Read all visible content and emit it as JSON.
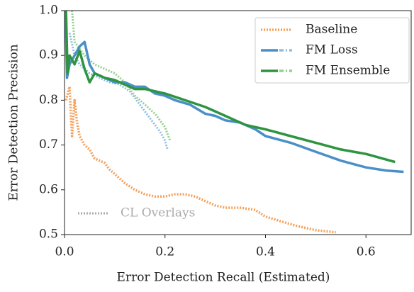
{
  "chart_data": {
    "type": "line",
    "xlabel": "Error Detection Recall (Estimated)",
    "ylabel": "Error Detection Precision",
    "xlim": [
      0,
      0.69
    ],
    "ylim": [
      0.5,
      1.0
    ],
    "xticks": [
      {
        "value": 0,
        "label": "0.0"
      },
      0.2,
      0.4,
      0.6
    ],
    "yticks": [
      0.5,
      0.6,
      0.7,
      0.8,
      0.9,
      {
        "value": 1.0,
        "label": "1.0"
      }
    ],
    "legend": "upper right",
    "series": [
      {
        "name": "Baseline",
        "color": "#f5a05a",
        "linestyle": "dotted",
        "x": [
          0.003,
          0.01,
          0.015,
          0.02,
          0.025,
          0.03,
          0.04,
          0.05,
          0.06,
          0.07,
          0.08,
          0.09,
          0.1,
          0.12,
          0.14,
          0.16,
          0.18,
          0.2,
          0.22,
          0.24,
          0.26,
          0.28,
          0.3,
          0.32,
          0.35,
          0.38,
          0.4,
          0.43,
          0.46,
          0.5,
          0.54
        ],
        "values": [
          0.8,
          0.83,
          0.72,
          0.8,
          0.75,
          0.72,
          0.7,
          0.69,
          0.67,
          0.665,
          0.66,
          0.645,
          0.635,
          0.615,
          0.6,
          0.59,
          0.585,
          0.585,
          0.59,
          0.59,
          0.585,
          0.575,
          0.565,
          0.56,
          0.56,
          0.555,
          0.54,
          0.53,
          0.52,
          0.51,
          0.505
        ]
      },
      {
        "name": "FM Loss",
        "color": "#4a8fc7",
        "linestyle": "solid",
        "x": [
          0.002,
          0.005,
          0.01,
          0.02,
          0.03,
          0.04,
          0.05,
          0.06,
          0.08,
          0.1,
          0.12,
          0.14,
          0.16,
          0.18,
          0.2,
          0.22,
          0.25,
          0.28,
          0.3,
          0.32,
          0.35,
          0.38,
          0.4,
          0.45,
          0.5,
          0.55,
          0.6,
          0.64,
          0.675
        ],
        "values": [
          1.0,
          0.85,
          0.88,
          0.9,
          0.92,
          0.93,
          0.88,
          0.86,
          0.85,
          0.84,
          0.84,
          0.83,
          0.83,
          0.815,
          0.81,
          0.8,
          0.79,
          0.77,
          0.765,
          0.755,
          0.75,
          0.735,
          0.72,
          0.705,
          0.685,
          0.665,
          0.65,
          0.643,
          0.64
        ]
      },
      {
        "name": "FM Ensemble",
        "color": "#2e9440",
        "linestyle": "solid",
        "x": [
          0.003,
          0.006,
          0.01,
          0.02,
          0.03,
          0.04,
          0.05,
          0.06,
          0.08,
          0.1,
          0.12,
          0.14,
          0.16,
          0.2,
          0.24,
          0.28,
          0.32,
          0.36,
          0.4,
          0.45,
          0.5,
          0.55,
          0.6,
          0.658
        ],
        "values": [
          1.0,
          0.86,
          0.9,
          0.88,
          0.91,
          0.87,
          0.84,
          0.86,
          0.85,
          0.845,
          0.835,
          0.825,
          0.825,
          0.815,
          0.8,
          0.785,
          0.765,
          0.745,
          0.735,
          0.72,
          0.705,
          0.69,
          0.68,
          0.662
        ]
      }
    ],
    "overlays": {
      "label": "CL Overlays",
      "color": "#aaaaaa",
      "curves": [
        {
          "color": "#8fbde0",
          "x": [
            0.01,
            0.02,
            0.03,
            0.04,
            0.05,
            0.07,
            0.09,
            0.11,
            0.13,
            0.15,
            0.17,
            0.19,
            0.2,
            0.205
          ],
          "values": [
            0.95,
            0.9,
            0.88,
            0.87,
            0.86,
            0.85,
            0.84,
            0.835,
            0.82,
            0.79,
            0.76,
            0.73,
            0.71,
            0.69
          ]
        },
        {
          "color": "#93d08c",
          "x": [
            0.015,
            0.02,
            0.04,
            0.06,
            0.08,
            0.1,
            0.12,
            0.14,
            0.16,
            0.18,
            0.2,
            0.21
          ],
          "values": [
            1.0,
            0.93,
            0.9,
            0.88,
            0.87,
            0.86,
            0.84,
            0.81,
            0.79,
            0.77,
            0.74,
            0.71
          ]
        }
      ]
    }
  }
}
